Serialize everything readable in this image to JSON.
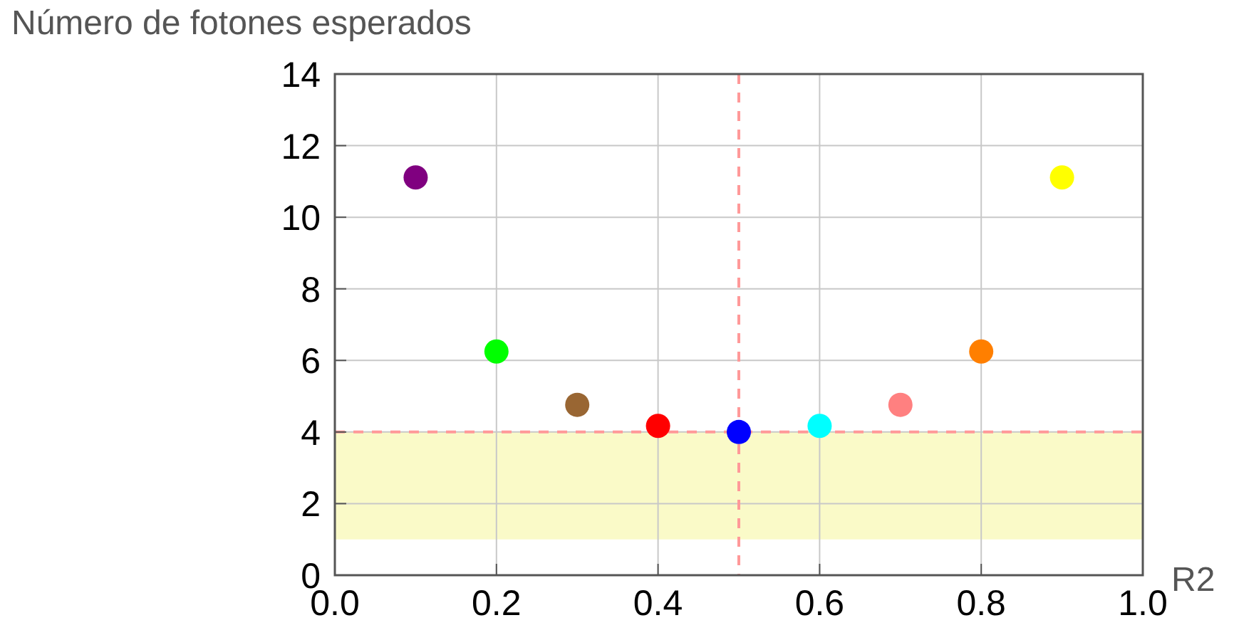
{
  "chart_data": {
    "type": "scatter",
    "ylabel": "Número de fotones esperados",
    "xlabel": "R2",
    "x": [
      0.1,
      0.2,
      0.3,
      0.4,
      0.5,
      0.6,
      0.7,
      0.8,
      0.9
    ],
    "values": [
      11.11,
      6.25,
      4.76,
      4.17,
      4.0,
      4.17,
      4.76,
      6.25,
      11.11
    ],
    "colors": [
      "#800080",
      "#00ff00",
      "#996633",
      "#ff0000",
      "#0000ff",
      "#00ffff",
      "#ff8080",
      "#ff7f00",
      "#ffff00"
    ],
    "xlim": [
      0,
      1
    ],
    "xticks": [
      {
        "value": 0,
        "label": "0.0"
      },
      0.2,
      0.4,
      0.6,
      0.8,
      {
        "value": 1,
        "label": "1.0"
      }
    ],
    "ylim": [
      0,
      14
    ],
    "yticks": [
      0,
      2,
      4,
      6,
      8,
      10,
      12,
      14
    ],
    "grid": true,
    "marker": "circle",
    "bands": [
      {
        "axis": "y",
        "from": 1,
        "to": 4,
        "color": "#fafac8"
      }
    ],
    "ref_lines": [
      {
        "axis": "x",
        "value": 0.5,
        "color": "#ff9999",
        "line_style": "dashed"
      },
      {
        "axis": "y",
        "value": 4,
        "color": "#ff9999",
        "line_style": "dashed"
      }
    ]
  }
}
